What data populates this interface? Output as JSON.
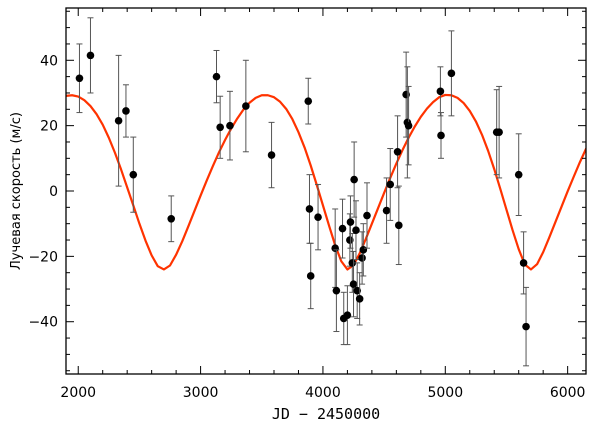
{
  "chart_data": {
    "type": "scatter",
    "title": "",
    "xlabel": "JD − 2450000",
    "ylabel": "Лучевая скорость (м/с)",
    "xlim": [
      1900,
      6150
    ],
    "ylim": [
      -56,
      56
    ],
    "xticks": [
      2000,
      3000,
      4000,
      5000,
      6000
    ],
    "yticks": [
      -40,
      -20,
      0,
      20,
      40
    ],
    "xtick_labels": [
      "2000",
      "3000",
      "4000",
      "5000",
      "6000"
    ],
    "ytick_labels": [
      "−40",
      "−20",
      "0",
      "20",
      "40"
    ],
    "grid": false,
    "legend": "none",
    "points_color": "#000000",
    "model_color": "#ff3300",
    "series": [
      {
        "kind": "measurements",
        "points": [
          {
            "x": 2010,
            "y": 34.5,
            "err": 10.5
          },
          {
            "x": 2100,
            "y": 41.5,
            "err": 11.5
          },
          {
            "x": 2330,
            "y": 21.5,
            "err": 20
          },
          {
            "x": 2390,
            "y": 24.5,
            "err": 8
          },
          {
            "x": 2450,
            "y": 5,
            "err": 11.5
          },
          {
            "x": 2760,
            "y": -8.5,
            "err": 7
          },
          {
            "x": 3130,
            "y": 35,
            "err": 8
          },
          {
            "x": 3160,
            "y": 19.5,
            "err": 9.5
          },
          {
            "x": 3240,
            "y": 20,
            "err": 10.5
          },
          {
            "x": 3370,
            "y": 26,
            "err": 14
          },
          {
            "x": 3580,
            "y": 11,
            "err": 10
          },
          {
            "x": 3880,
            "y": 27.5,
            "err": 7
          },
          {
            "x": 3890,
            "y": -5.5,
            "err": 10.5
          },
          {
            "x": 3900,
            "y": -26,
            "err": 10
          },
          {
            "x": 3960,
            "y": -8,
            "err": 10
          },
          {
            "x": 4100,
            "y": -17.5,
            "err": 12
          },
          {
            "x": 4110,
            "y": -30.5,
            "err": 12.5
          },
          {
            "x": 4160,
            "y": -11.5,
            "err": 9
          },
          {
            "x": 4170,
            "y": -39,
            "err": 8
          },
          {
            "x": 4200,
            "y": -38,
            "err": 9
          },
          {
            "x": 4220,
            "y": -15,
            "err": 8
          },
          {
            "x": 4225,
            "y": -9.5,
            "err": 8
          },
          {
            "x": 4240,
            "y": -22,
            "err": 9
          },
          {
            "x": 4250,
            "y": -28.5,
            "err": 10
          },
          {
            "x": 4255,
            "y": 3.5,
            "err": 11.5
          },
          {
            "x": 4270,
            "y": -12,
            "err": 9
          },
          {
            "x": 4280,
            "y": -30.5,
            "err": 8.5
          },
          {
            "x": 4300,
            "y": -33,
            "err": 8
          },
          {
            "x": 4320,
            "y": -20.5,
            "err": 8
          },
          {
            "x": 4330,
            "y": -18,
            "err": 8
          },
          {
            "x": 4360,
            "y": -7.5,
            "err": 10
          },
          {
            "x": 4520,
            "y": -6,
            "err": 10
          },
          {
            "x": 4550,
            "y": 2,
            "err": 11
          },
          {
            "x": 4610,
            "y": 12,
            "err": 11
          },
          {
            "x": 4620,
            "y": -10.5,
            "err": 12
          },
          {
            "x": 4680,
            "y": 29.5,
            "err": 13
          },
          {
            "x": 4690,
            "y": 21,
            "err": 17
          },
          {
            "x": 4700,
            "y": 20,
            "err": 12
          },
          {
            "x": 4960,
            "y": 30.5,
            "err": 7.5
          },
          {
            "x": 4965,
            "y": 17,
            "err": 7
          },
          {
            "x": 5050,
            "y": 36,
            "err": 13
          },
          {
            "x": 5420,
            "y": 18,
            "err": 13
          },
          {
            "x": 5440,
            "y": 18,
            "err": 14
          },
          {
            "x": 5600,
            "y": 5,
            "err": 12.5
          },
          {
            "x": 5640,
            "y": -22,
            "err": 9.5
          },
          {
            "x": 5660,
            "y": -41.5,
            "err": 12
          }
        ]
      },
      {
        "kind": "model",
        "x": [
          1900,
          1950,
          2000,
          2050,
          2100,
          2150,
          2200,
          2250,
          2300,
          2350,
          2400,
          2450,
          2500,
          2550,
          2600,
          2650,
          2700,
          2750,
          2800,
          2850,
          2900,
          2950,
          3000,
          3050,
          3100,
          3150,
          3200,
          3250,
          3300,
          3350,
          3400,
          3450,
          3500,
          3550,
          3600,
          3650,
          3700,
          3750,
          3800,
          3850,
          3900,
          3950,
          4000,
          4050,
          4100,
          4150,
          4200,
          4250,
          4300,
          4350,
          4400,
          4450,
          4500,
          4550,
          4600,
          4650,
          4700,
          4750,
          4800,
          4850,
          4900,
          4950,
          5000,
          5050,
          5100,
          5150,
          5200,
          5250,
          5300,
          5350,
          5400,
          5450,
          5500,
          5550,
          5600,
          5650,
          5700,
          5750,
          5800,
          5850,
          5900,
          5950,
          6000,
          6050,
          6100,
          6150
        ],
        "y": [
          29.1,
          29.3,
          28.9,
          27.8,
          26.0,
          23.5,
          20.3,
          16.3,
          11.7,
          6.6,
          1.1,
          -4.4,
          -10.0,
          -15.2,
          -19.7,
          -23.0,
          -24.0,
          -22.8,
          -19.5,
          -15.4,
          -10.8,
          -6.1,
          -1.4,
          3.2,
          7.6,
          11.8,
          15.6,
          19.1,
          22.2,
          24.9,
          27.0,
          28.5,
          29.3,
          29.3,
          28.7,
          27.3,
          25.1,
          22.0,
          18.0,
          13.3,
          7.8,
          1.8,
          -4.4,
          -10.6,
          -16.6,
          -21.5,
          -24.0,
          -22.7,
          -19.1,
          -14.7,
          -10.0,
          -5.3,
          -0.6,
          4.0,
          8.4,
          12.5,
          16.3,
          19.7,
          22.7,
          25.2,
          27.2,
          28.7,
          29.4,
          29.3,
          28.5,
          26.9,
          24.5,
          21.3,
          17.2,
          12.3,
          6.7,
          0.6,
          -5.7,
          -12.0,
          -17.8,
          -22.5,
          -24.0,
          -22.4,
          -18.7,
          -14.2,
          -9.5,
          -4.8,
          -0.1,
          4.4,
          8.8,
          12.9
        ]
      }
    ]
  }
}
